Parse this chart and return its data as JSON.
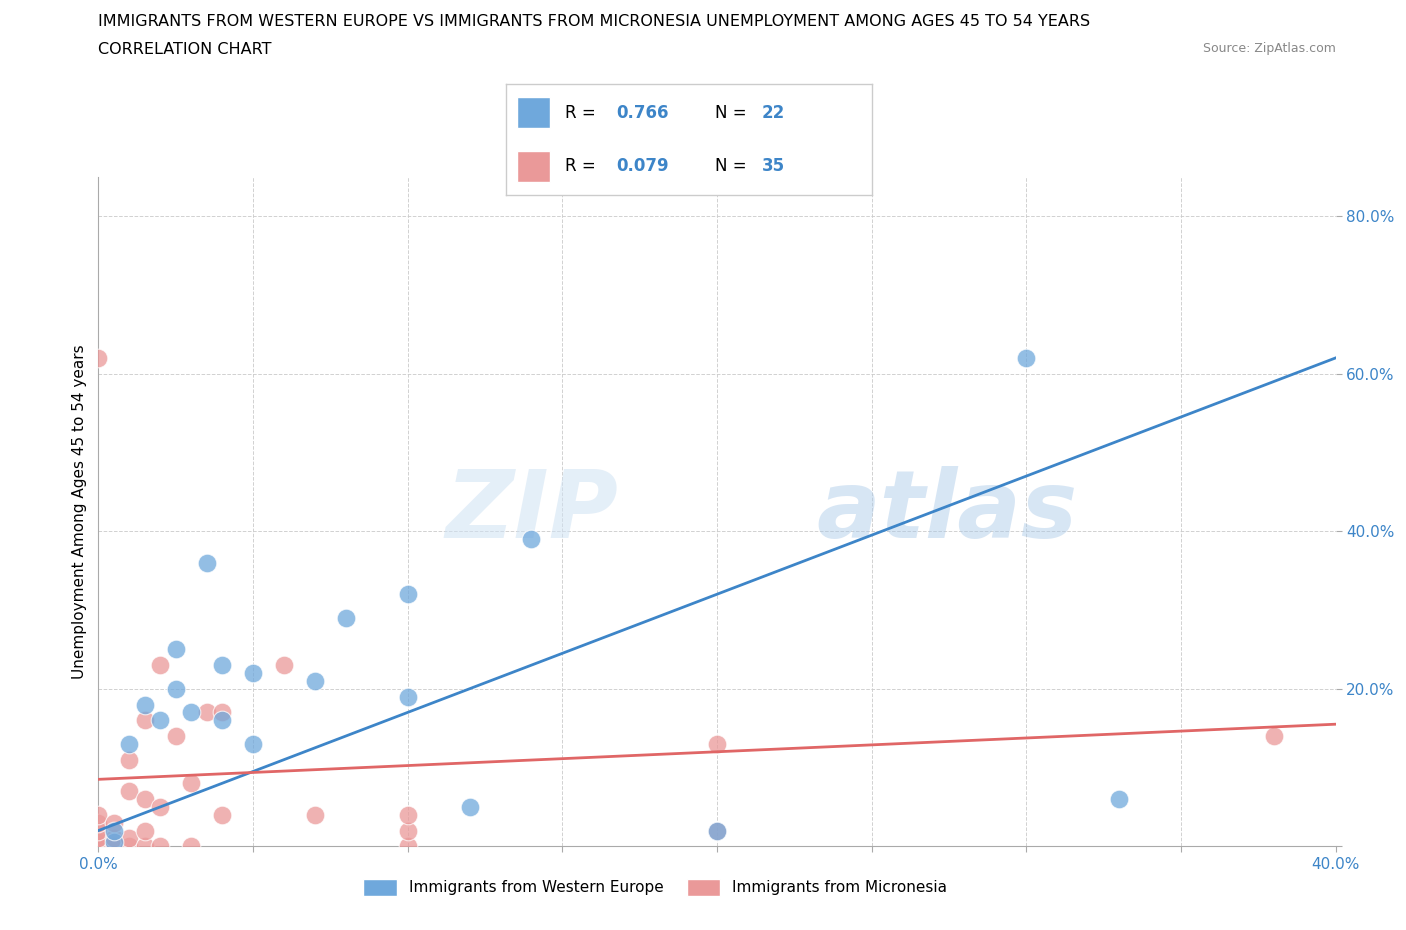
{
  "title_line1": "IMMIGRANTS FROM WESTERN EUROPE VS IMMIGRANTS FROM MICRONESIA UNEMPLOYMENT AMONG AGES 45 TO 54 YEARS",
  "title_line2": "CORRELATION CHART",
  "source": "Source: ZipAtlas.com",
  "ylabel": "Unemployment Among Ages 45 to 54 years",
  "xlim": [
    0.0,
    0.4
  ],
  "ylim": [
    0.0,
    0.85
  ],
  "xticks": [
    0.0,
    0.05,
    0.1,
    0.15,
    0.2,
    0.25,
    0.3,
    0.35,
    0.4
  ],
  "ytick_positions": [
    0.0,
    0.2,
    0.4,
    0.6,
    0.8
  ],
  "ytick_labels": [
    "",
    "20.0%",
    "40.0%",
    "60.0%",
    "80.0%"
  ],
  "blue_R": 0.766,
  "blue_N": 22,
  "pink_R": 0.079,
  "pink_N": 35,
  "blue_color": "#6fa8dc",
  "pink_color": "#ea9999",
  "blue_line_color": "#3d85c8",
  "pink_line_color": "#e06666",
  "watermark_zip": "ZIP",
  "watermark_atlas": "atlas",
  "blue_scatter_x": [
    0.005,
    0.005,
    0.01,
    0.015,
    0.02,
    0.025,
    0.025,
    0.03,
    0.035,
    0.04,
    0.04,
    0.05,
    0.05,
    0.07,
    0.08,
    0.1,
    0.1,
    0.12,
    0.14,
    0.2,
    0.3,
    0.33
  ],
  "blue_scatter_y": [
    0.005,
    0.02,
    0.13,
    0.18,
    0.16,
    0.2,
    0.25,
    0.17,
    0.36,
    0.16,
    0.23,
    0.13,
    0.22,
    0.21,
    0.29,
    0.19,
    0.32,
    0.05,
    0.39,
    0.02,
    0.62,
    0.06
  ],
  "pink_scatter_x": [
    0.0,
    0.0,
    0.0,
    0.0,
    0.0,
    0.0,
    0.0,
    0.005,
    0.005,
    0.005,
    0.01,
    0.01,
    0.01,
    0.01,
    0.015,
    0.015,
    0.015,
    0.015,
    0.02,
    0.02,
    0.02,
    0.025,
    0.03,
    0.03,
    0.035,
    0.04,
    0.04,
    0.06,
    0.07,
    0.1,
    0.1,
    0.1,
    0.2,
    0.2,
    0.38
  ],
  "pink_scatter_y": [
    0.0,
    0.005,
    0.01,
    0.02,
    0.03,
    0.04,
    0.62,
    0.0,
    0.01,
    0.03,
    0.0,
    0.01,
    0.07,
    0.11,
    0.0,
    0.02,
    0.06,
    0.16,
    0.0,
    0.05,
    0.23,
    0.14,
    0.0,
    0.08,
    0.17,
    0.04,
    0.17,
    0.23,
    0.04,
    0.0,
    0.02,
    0.04,
    0.02,
    0.13,
    0.14
  ],
  "blue_line_x0": 0.0,
  "blue_line_y0": 0.02,
  "blue_line_x1": 0.4,
  "blue_line_y1": 0.62,
  "pink_line_x0": 0.0,
  "pink_line_y0": 0.085,
  "pink_line_x1": 0.4,
  "pink_line_y1": 0.155,
  "legend_label_blue": "Immigrants from Western Europe",
  "legend_label_pink": "Immigrants from Micronesia"
}
